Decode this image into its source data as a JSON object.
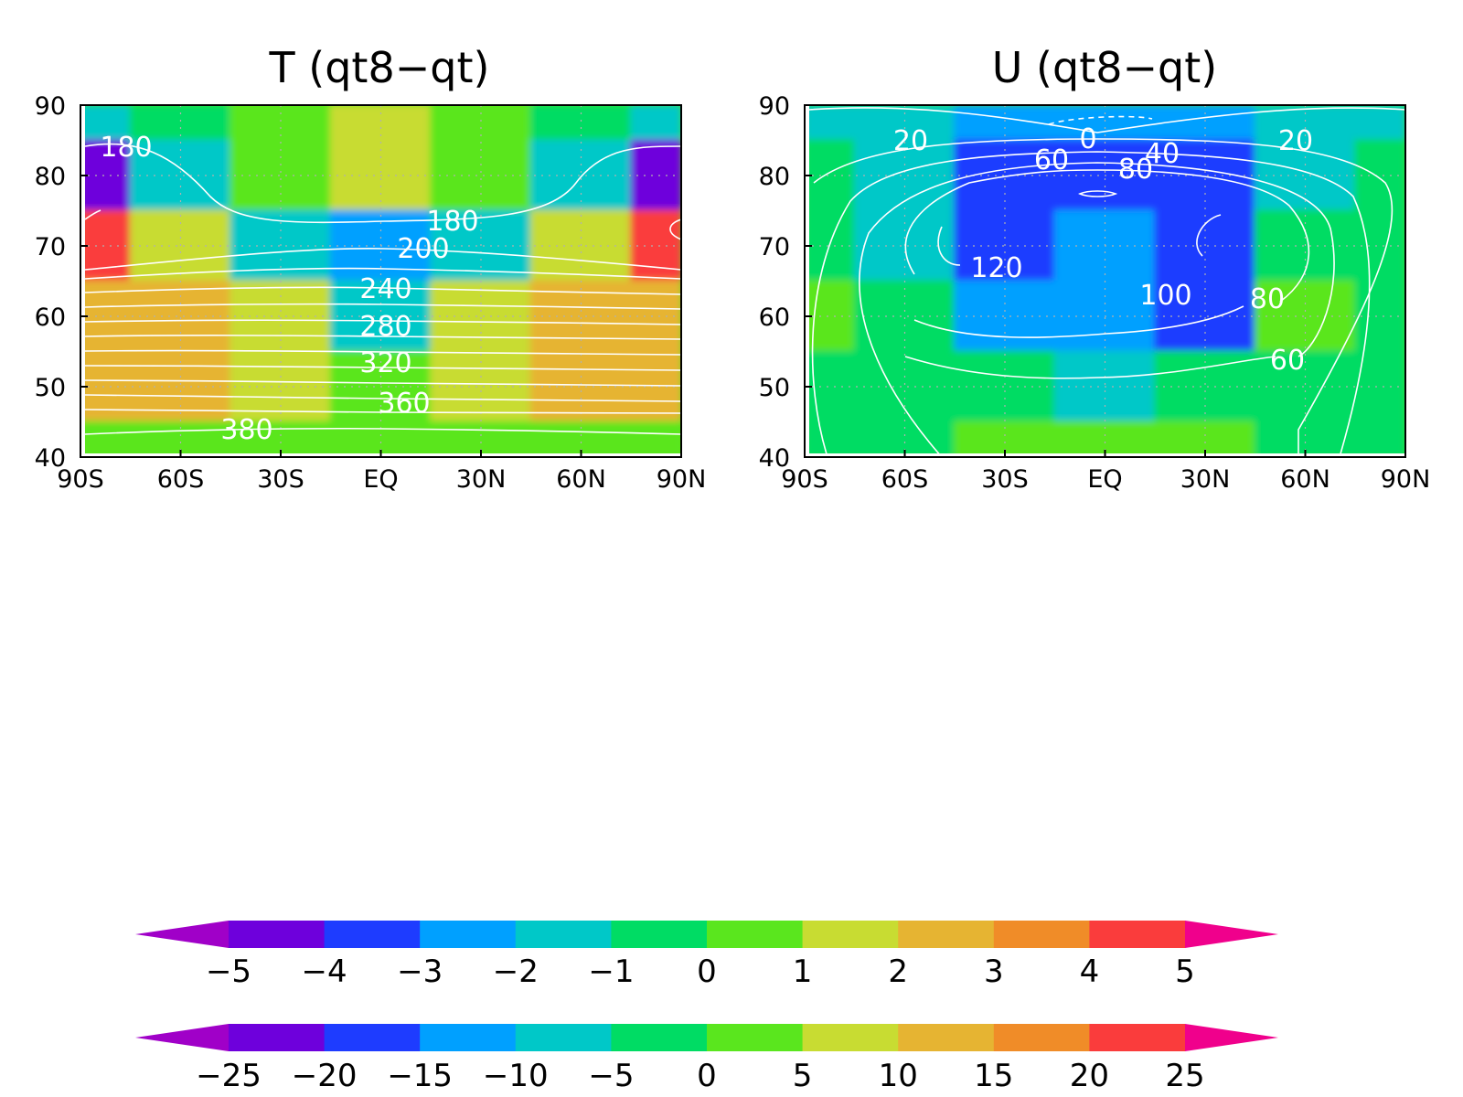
{
  "chart_data": [
    {
      "type": "heatmap",
      "title": "T (qt8−qt)",
      "xlim": [
        -90,
        90
      ],
      "ylim": [
        40,
        90
      ],
      "x_ticks": [
        -90,
        -60,
        -30,
        0,
        30,
        60,
        90
      ],
      "x_tick_labels": [
        "90S",
        "60S",
        "30S",
        "EQ",
        "30N",
        "60N",
        "90N"
      ],
      "y_ticks": [
        40,
        50,
        60,
        70,
        80,
        90
      ],
      "y_tick_labels": [
        "40",
        "50",
        "60",
        "70",
        "80",
        "90"
      ],
      "grid": true,
      "colorbar": "upper",
      "shading_samples": {
        "lat": [
          90,
          80,
          70,
          60,
          50,
          40
        ],
        "lon": [
          -90,
          -60,
          -30,
          0,
          30,
          60,
          90
        ],
        "values": [
          [
            -1.5,
            -0.5,
            0.5,
            1.5,
            0.5,
            -0.5,
            -1.5
          ],
          [
            -5,
            -1.5,
            0.5,
            1.5,
            0.5,
            -1.5,
            -5
          ],
          [
            4.5,
            1.5,
            -1.5,
            -2.5,
            -1.5,
            1.5,
            4.5
          ],
          [
            2.5,
            2.5,
            1.5,
            -1.5,
            1.5,
            2.5,
            2.5
          ],
          [
            2.5,
            2.5,
            1.5,
            0.5,
            1.5,
            2.5,
            2.5
          ],
          [
            0.5,
            0.5,
            0.5,
            0.5,
            0.5,
            0.5,
            0.5
          ]
        ]
      },
      "contour_labels": [
        "180",
        "180",
        "200",
        "240",
        "280",
        "320",
        "360",
        "380"
      ]
    },
    {
      "type": "heatmap",
      "title": "U (qt8−qt)",
      "xlim": [
        -90,
        90
      ],
      "ylim": [
        40,
        90
      ],
      "x_ticks": [
        -90,
        -60,
        -30,
        0,
        30,
        60,
        90
      ],
      "x_tick_labels": [
        "90S",
        "60S",
        "30S",
        "EQ",
        "30N",
        "60N",
        "90N"
      ],
      "y_ticks": [
        40,
        50,
        60,
        70,
        80,
        90
      ],
      "y_tick_labels": [
        "40",
        "50",
        "60",
        "70",
        "80",
        "90"
      ],
      "grid": true,
      "colorbar": "lower",
      "shading_samples": {
        "lat": [
          90,
          80,
          70,
          60,
          50,
          40
        ],
        "lon": [
          -90,
          -60,
          -30,
          0,
          30,
          60,
          90
        ],
        "values": [
          [
            -7,
            -7,
            -12,
            -12,
            -12,
            -7,
            -7
          ],
          [
            -2,
            -7,
            -17,
            -17,
            -17,
            -7,
            -2
          ],
          [
            -2,
            -7,
            -17,
            -12,
            -17,
            -2,
            -2
          ],
          [
            2,
            -2,
            -12,
            -12,
            -17,
            2,
            -2
          ],
          [
            -2,
            -2,
            -2,
            -7,
            -2,
            -2,
            -2
          ],
          [
            -2,
            -2,
            2,
            2,
            2,
            -2,
            -2
          ]
        ]
      },
      "contour_labels": [
        "20",
        "0",
        "40",
        "20",
        "60",
        "80",
        "120",
        "100",
        "80",
        "60"
      ]
    }
  ],
  "colorbars": [
    {
      "labels": [
        "−5",
        "−4",
        "−3",
        "−2",
        "−1",
        "0",
        "1",
        "2",
        "3",
        "4",
        "5"
      ],
      "levels": [
        -5,
        -4,
        -3,
        -2,
        -1,
        0,
        1,
        2,
        3,
        4,
        5
      ]
    },
    {
      "labels": [
        "−25",
        "−20",
        "−15",
        "−10",
        "−5",
        "0",
        "5",
        "10",
        "15",
        "20",
        "25"
      ],
      "levels": [
        -25,
        -20,
        -15,
        -10,
        -5,
        0,
        5,
        10,
        15,
        20,
        25
      ]
    }
  ],
  "palette": [
    "#a000c8",
    "#6e00dc",
    "#1e3cff",
    "#00a0ff",
    "#00c8c8",
    "#00dc64",
    "#5ae61e",
    "#c8dc32",
    "#e6b432",
    "#f08c28",
    "#fa3c3c",
    "#f0008c"
  ]
}
